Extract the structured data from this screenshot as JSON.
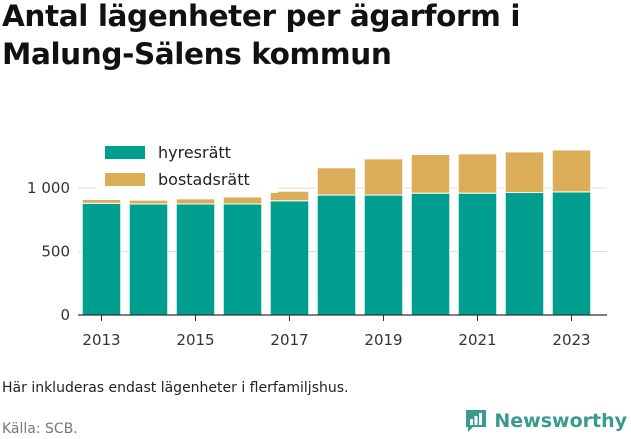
{
  "title": "Antal lägenheter per ägarform i Malung-Sälens kommun",
  "note": "Här inkluderas endast lägenheter i flerfamiljshus.",
  "source": "Källa: SCB.",
  "brand": "Newsworthy",
  "colors": {
    "hyresratt": "#009e8e",
    "bostadsratt": "#dbad59",
    "grid": "#dddddd",
    "axis": "#333333",
    "brand": "#3a9a8f"
  },
  "chart_data": {
    "type": "bar",
    "stacked": true,
    "categories": [
      "2013",
      "2014",
      "2015",
      "2016",
      "2017",
      "2018",
      "2019",
      "2020",
      "2021",
      "2022",
      "2023"
    ],
    "series": [
      {
        "name": "hyresrätt",
        "color": "#009e8e",
        "values": [
          880,
          875,
          875,
          875,
          900,
          945,
          945,
          960,
          960,
          965,
          970
        ]
      },
      {
        "name": "bostadsrätt",
        "color": "#dbad59",
        "values": [
          30,
          30,
          40,
          55,
          75,
          215,
          285,
          305,
          310,
          320,
          330
        ]
      }
    ],
    "x_tick_labels": [
      "2013",
      "2015",
      "2017",
      "2019",
      "2021",
      "2023"
    ],
    "y_ticks": [
      0,
      500,
      1000
    ],
    "y_tick_labels": [
      "0",
      "500",
      "1 000"
    ],
    "ylim": [
      0,
      1300
    ],
    "xlabel": "",
    "ylabel": "",
    "grid": true,
    "legend": "top-left"
  }
}
